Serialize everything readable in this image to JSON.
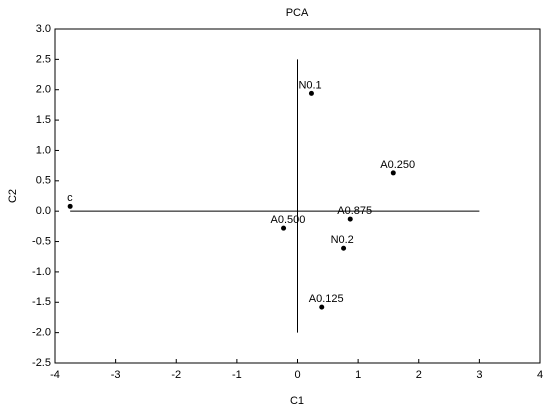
{
  "chart_data": {
    "type": "scatter",
    "title": "PCA",
    "x_label": "C1",
    "y_label": "C2",
    "series": [
      {
        "color": "#000000",
        "labels": [
          "c",
          "N0.1",
          "A0.250",
          "A0.500",
          "A0.875",
          "N0.2",
          "A0.125"
        ],
        "x": [
          -3.75,
          0.23,
          1.58,
          -0.23,
          0.87,
          0.76,
          0.4
        ],
        "values": [
          0.08,
          1.94,
          0.63,
          -0.28,
          -0.13,
          -0.61,
          -1.58
        ]
      }
    ],
    "reference_lines": [
      {
        "x": [
          -3.75,
          3
        ],
        "y": [
          0,
          0
        ]
      },
      {
        "x": [
          0,
          0
        ],
        "y": [
          -2,
          2.5
        ]
      }
    ],
    "xlim": [
      -4,
      4
    ],
    "xticks": [
      -4,
      -3,
      -2,
      -1,
      0,
      1,
      2,
      3,
      4
    ],
    "ylim": [
      -2.5,
      3
    ],
    "yticks": [
      {
        "value": 3,
        "label": "3.0"
      },
      2.5,
      {
        "value": 2,
        "label": "2.0"
      },
      1.5,
      {
        "value": 1,
        "label": "1.0"
      },
      0.5,
      {
        "value": 0,
        "label": "0.0"
      },
      -0.5,
      {
        "value": -1,
        "label": "-1.0"
      },
      -1.5,
      {
        "value": -2,
        "label": "-2.0"
      },
      -2.5
    ]
  }
}
